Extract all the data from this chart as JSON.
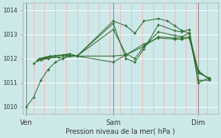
{
  "xlabel": "Pression niveau de la mer( hPa )",
  "bg_color": "#cce8e8",
  "grid_h_color": "#ffffff",
  "grid_v_color": "#ffaaaa",
  "line_color": "#2d6e2d",
  "marker_color": "#2d6e2d",
  "vline_color": "#888888",
  "ylim": [
    1009.7,
    1014.3
  ],
  "yticks": [
    1010,
    1011,
    1012,
    1013,
    1014
  ],
  "xlim": [
    0.0,
    1.08
  ],
  "xtick_labels": [
    "Ven",
    "Sam",
    "Dim"
  ],
  "xtick_positions": [
    0.02,
    0.5,
    0.97
  ],
  "vline_positions": [
    0.02,
    0.5,
    0.97
  ],
  "series": [
    [
      [
        0.02,
        1010.0
      ],
      [
        0.06,
        1010.4
      ],
      [
        0.1,
        1011.1
      ],
      [
        0.14,
        1011.55
      ],
      [
        0.18,
        1011.85
      ],
      [
        0.22,
        1012.0
      ],
      [
        0.26,
        1012.1
      ],
      [
        0.3,
        1012.1
      ],
      [
        0.5,
        1013.55
      ],
      [
        0.57,
        1013.35
      ],
      [
        0.62,
        1013.05
      ],
      [
        0.67,
        1013.55
      ],
      [
        0.75,
        1013.65
      ],
      [
        0.8,
        1013.55
      ],
      [
        0.84,
        1013.35
      ],
      [
        0.88,
        1013.15
      ],
      [
        0.92,
        1013.05
      ],
      [
        0.97,
        1011.1
      ],
      [
        1.03,
        1011.1
      ]
    ],
    [
      [
        0.06,
        1011.8
      ],
      [
        0.1,
        1011.95
      ],
      [
        0.14,
        1012.0
      ],
      [
        0.18,
        1012.1
      ],
      [
        0.22,
        1012.15
      ],
      [
        0.26,
        1012.2
      ],
      [
        0.3,
        1012.1
      ],
      [
        0.5,
        1013.45
      ],
      [
        0.57,
        1012.0
      ],
      [
        0.62,
        1011.85
      ],
      [
        0.67,
        1012.4
      ],
      [
        0.75,
        1013.4
      ],
      [
        0.84,
        1013.15
      ],
      [
        0.88,
        1013.1
      ],
      [
        0.92,
        1013.2
      ],
      [
        0.97,
        1011.0
      ],
      [
        1.03,
        1011.2
      ]
    ],
    [
      [
        0.08,
        1011.95
      ],
      [
        0.13,
        1012.05
      ],
      [
        0.18,
        1012.1
      ],
      [
        0.24,
        1012.15
      ],
      [
        0.3,
        1012.1
      ],
      [
        0.5,
        1013.2
      ],
      [
        0.57,
        1012.2
      ],
      [
        0.62,
        1012.0
      ],
      [
        0.67,
        1012.5
      ],
      [
        0.75,
        1013.1
      ],
      [
        0.84,
        1012.95
      ],
      [
        0.88,
        1012.9
      ],
      [
        0.92,
        1013.05
      ],
      [
        0.97,
        1011.5
      ],
      [
        1.03,
        1011.15
      ]
    ],
    [
      [
        0.09,
        1012.0
      ],
      [
        0.15,
        1012.1
      ],
      [
        0.22,
        1012.15
      ],
      [
        0.3,
        1012.1
      ],
      [
        0.5,
        1012.1
      ],
      [
        0.57,
        1012.15
      ],
      [
        0.67,
        1012.5
      ],
      [
        0.75,
        1012.9
      ],
      [
        0.84,
        1012.85
      ],
      [
        0.88,
        1012.85
      ],
      [
        0.92,
        1012.9
      ],
      [
        0.97,
        1011.45
      ],
      [
        1.03,
        1011.15
      ]
    ],
    [
      [
        0.11,
        1012.0
      ],
      [
        0.2,
        1012.05
      ],
      [
        0.3,
        1012.1
      ],
      [
        0.5,
        1011.85
      ],
      [
        0.57,
        1012.15
      ],
      [
        0.67,
        1012.6
      ],
      [
        0.75,
        1012.85
      ],
      [
        0.84,
        1012.8
      ],
      [
        0.88,
        1012.8
      ],
      [
        0.92,
        1012.85
      ],
      [
        0.97,
        1011.4
      ],
      [
        1.03,
        1011.2
      ]
    ]
  ]
}
